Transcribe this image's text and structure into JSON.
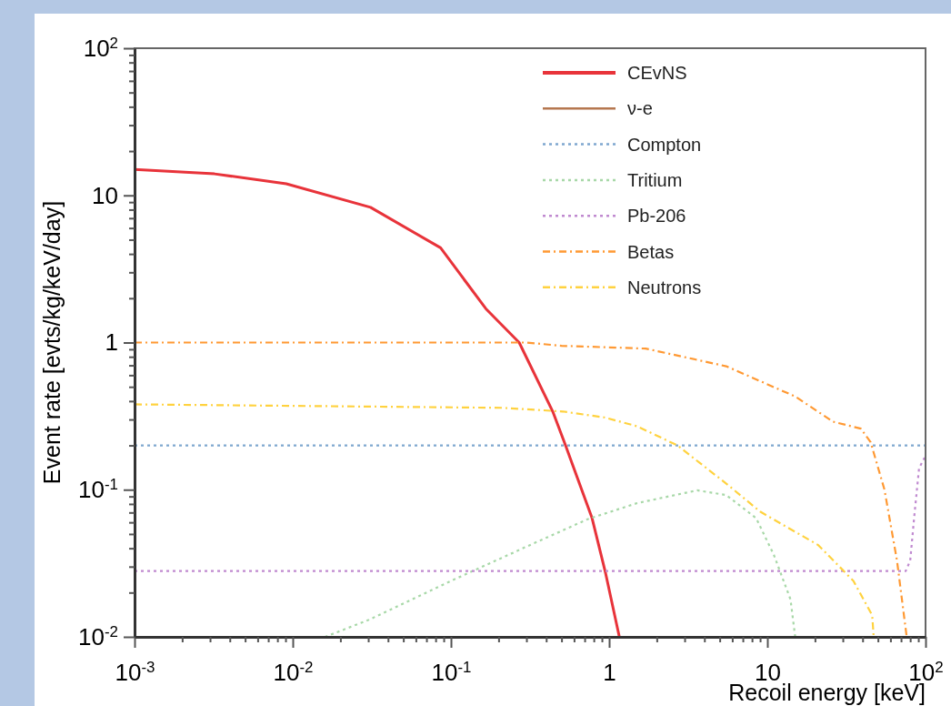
{
  "chart_data": {
    "type": "line",
    "xlabel": "Recoil energy [keV]",
    "ylabel": "Event rate [evts/kg/keV/day]",
    "log": "xy",
    "xlim": [
      0.001,
      100
    ],
    "ylim": [
      0.01,
      100
    ],
    "xticks": [
      {
        "value": 0.001,
        "label": "10$^{-3}$"
      },
      {
        "value": 0.002,
        "label": null
      },
      {
        "value": 0.003,
        "label": null
      },
      {
        "value": 0.004,
        "label": null
      },
      {
        "value": 0.005,
        "label": null
      },
      {
        "value": 0.006,
        "label": null
      },
      {
        "value": 0.007,
        "label": null
      },
      {
        "value": 0.008,
        "label": null
      },
      {
        "value": 0.009,
        "label": null
      },
      {
        "value": 0.01,
        "label": "10$^{-2}$"
      },
      {
        "value": 0.02,
        "label": null
      },
      {
        "value": 0.03,
        "label": null
      },
      {
        "value": 0.04,
        "label": null
      },
      {
        "value": 0.05,
        "label": null
      },
      {
        "value": 0.06,
        "label": null
      },
      {
        "value": 0.07,
        "label": null
      },
      {
        "value": 0.08,
        "label": null
      },
      {
        "value": 0.09,
        "label": null
      },
      {
        "value": 0.1,
        "label": "10$^{-1}$"
      },
      {
        "value": 0.2,
        "label": null
      },
      {
        "value": 0.3,
        "label": null
      },
      {
        "value": 0.4,
        "label": null
      },
      {
        "value": 0.5,
        "label": null
      },
      {
        "value": 0.6,
        "label": null
      },
      {
        "value": 0.7,
        "label": null
      },
      {
        "value": 0.8,
        "label": null
      },
      {
        "value": 0.9,
        "label": null
      },
      {
        "value": 1,
        "label": "1"
      },
      {
        "value": 2,
        "label": null
      },
      {
        "value": 3,
        "label": null
      },
      {
        "value": 4,
        "label": null
      },
      {
        "value": 5,
        "label": null
      },
      {
        "value": 6,
        "label": null
      },
      {
        "value": 7,
        "label": null
      },
      {
        "value": 8,
        "label": null
      },
      {
        "value": 9,
        "label": null
      },
      {
        "value": 10,
        "label": "10"
      },
      {
        "value": 20,
        "label": null
      },
      {
        "value": 30,
        "label": null
      },
      {
        "value": 40,
        "label": null
      },
      {
        "value": 50,
        "label": null
      },
      {
        "value": 60,
        "label": null
      },
      {
        "value": 70,
        "label": null
      },
      {
        "value": 80,
        "label": null
      },
      {
        "value": 90,
        "label": null
      },
      {
        "value": 100,
        "label": "10$^{2}$"
      }
    ],
    "yticks": [
      {
        "value": 0.01,
        "label": "10$^{-2}$"
      },
      {
        "value": 0.02,
        "label": null
      },
      {
        "value": 0.03,
        "label": null
      },
      {
        "value": 0.04,
        "label": null
      },
      {
        "value": 0.05,
        "label": null
      },
      {
        "value": 0.06,
        "label": null
      },
      {
        "value": 0.07,
        "label": null
      },
      {
        "value": 0.08,
        "label": null
      },
      {
        "value": 0.09,
        "label": null
      },
      {
        "value": 0.1,
        "label": "10$^{-1}$"
      },
      {
        "value": 0.2,
        "label": null
      },
      {
        "value": 0.3,
        "label": null
      },
      {
        "value": 0.4,
        "label": null
      },
      {
        "value": 0.5,
        "label": null
      },
      {
        "value": 0.6,
        "label": null
      },
      {
        "value": 0.7,
        "label": null
      },
      {
        "value": 0.8,
        "label": null
      },
      {
        "value": 0.9,
        "label": null
      },
      {
        "value": 1,
        "label": "1"
      },
      {
        "value": 2,
        "label": null
      },
      {
        "value": 3,
        "label": null
      },
      {
        "value": 4,
        "label": null
      },
      {
        "value": 5,
        "label": null
      },
      {
        "value": 6,
        "label": null
      },
      {
        "value": 7,
        "label": null
      },
      {
        "value": 8,
        "label": null
      },
      {
        "value": 9,
        "label": null
      },
      {
        "value": 10,
        "label": "10"
      },
      {
        "value": 20,
        "label": null
      },
      {
        "value": 30,
        "label": null
      },
      {
        "value": 40,
        "label": null
      },
      {
        "value": 50,
        "label": null
      },
      {
        "value": 60,
        "label": null
      },
      {
        "value": 70,
        "label": null
      },
      {
        "value": 80,
        "label": null
      },
      {
        "value": 90,
        "label": null
      },
      {
        "value": 100,
        "label": "10$^{2}$"
      }
    ],
    "grid": false,
    "legend": "top right",
    "marker": "none",
    "series": [
      {
        "name": "CEvNS",
        "color": "#e8333a",
        "line_style": "solid",
        "x": [
          0.001,
          0.0032,
          0.0091,
          0.031,
          0.086,
          0.166,
          0.27,
          0.44,
          0.53,
          0.78,
          0.95,
          1.16
        ],
        "values": [
          15,
          14,
          12,
          8.3,
          4.4,
          1.7,
          1.0,
          0.34,
          0.2,
          0.064,
          0.027,
          0.01
        ]
      },
      {
        "name": "ν-e",
        "color": "#b5774f",
        "line_style": "solid"
      },
      {
        "name": "Compton",
        "color": "#7fa8d0",
        "line_style": "dotted",
        "x": [
          0.001,
          100
        ],
        "values": [
          0.2,
          0.2
        ]
      },
      {
        "name": "Tritium",
        "color": "#a8d8a8",
        "line_style": "dotted",
        "x": [
          0.016,
          0.03,
          0.1,
          0.3,
          0.73,
          1.5,
          3.6,
          5.5,
          8.5,
          11,
          14,
          15
        ],
        "values": [
          0.01,
          0.013,
          0.024,
          0.041,
          0.063,
          0.081,
          0.099,
          0.092,
          0.064,
          0.036,
          0.018,
          0.01
        ]
      },
      {
        "name": "Pb-206",
        "color": "#c08ad0",
        "line_style": "dotted",
        "x": [
          0.001,
          75,
          80,
          85,
          91,
          100
        ],
        "values": [
          0.028,
          0.028,
          0.033,
          0.067,
          0.14,
          0.17
        ]
      },
      {
        "name": "Betas",
        "color": "#ff9933",
        "line_style": "dashed",
        "x": [
          0.001,
          0.3,
          0.5,
          1.7,
          5.5,
          15,
          26,
          39,
          45,
          55,
          66,
          76
        ],
        "values": [
          1.0,
          1.0,
          0.95,
          0.91,
          0.69,
          0.43,
          0.29,
          0.26,
          0.21,
          0.1,
          0.033,
          0.01
        ]
      },
      {
        "name": "Neutrons",
        "color": "#ffd23f",
        "line_style": "dashed",
        "x": [
          0.001,
          0.21,
          0.51,
          0.93,
          1.5,
          2.7,
          5.5,
          9,
          21,
          35,
          46,
          47
        ],
        "values": [
          0.38,
          0.36,
          0.34,
          0.31,
          0.27,
          0.2,
          0.11,
          0.071,
          0.042,
          0.024,
          0.014,
          0.01
        ]
      }
    ]
  }
}
